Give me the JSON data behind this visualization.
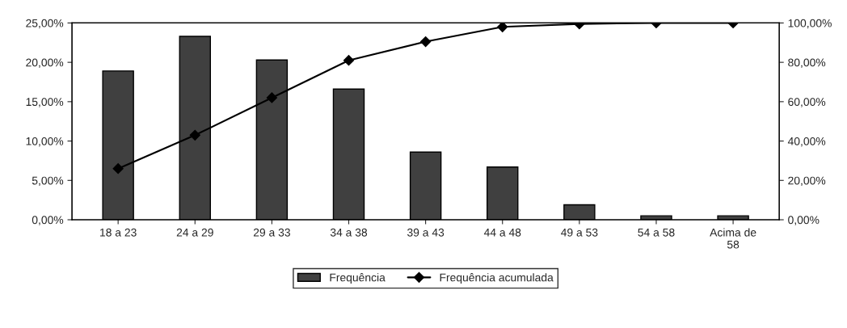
{
  "chart_data": {
    "type": "bar",
    "categories": [
      "18 a 23",
      "24 a 29",
      "29 a 33",
      "34 a 38",
      "39 a 43",
      "44 a 48",
      "49 a 53",
      "54 a 58",
      "Acima de\n58"
    ],
    "series": [
      {
        "name": "Frequência",
        "color": "#404040",
        "values": [
          18.9,
          23.3,
          20.3,
          16.6,
          8.6,
          6.7,
          1.9,
          0.5,
          0.5
        ]
      },
      {
        "name": "Frequência acumulada",
        "type": "line",
        "axis": "y2",
        "color": "#000000",
        "values": [
          26,
          43,
          62,
          81,
          90.5,
          98,
          99.5,
          100,
          100
        ]
      }
    ],
    "ylim": [
      0,
      25
    ],
    "yticks": [
      {
        "value": 0,
        "label": "0,00%"
      },
      {
        "value": 5,
        "label": "5,00%"
      },
      {
        "value": 10,
        "label": "10,00%"
      },
      {
        "value": 15,
        "label": "15,00%"
      },
      {
        "value": 20,
        "label": "20,00%"
      },
      {
        "value": 25,
        "label": "25,00%"
      }
    ],
    "y2lim": [
      0,
      100
    ],
    "y2ticks": [
      {
        "value": 0,
        "label": "0,00%"
      },
      {
        "value": 20,
        "label": "20,00%"
      },
      {
        "value": 40,
        "label": "40,00%"
      },
      {
        "value": 60,
        "label": "60,00%"
      },
      {
        "value": 80,
        "label": "80,00%"
      },
      {
        "value": 100,
        "label": "100,00%"
      }
    ],
    "marker": "diamond",
    "line_style": "solid",
    "grid": false,
    "legend": "bottom"
  }
}
